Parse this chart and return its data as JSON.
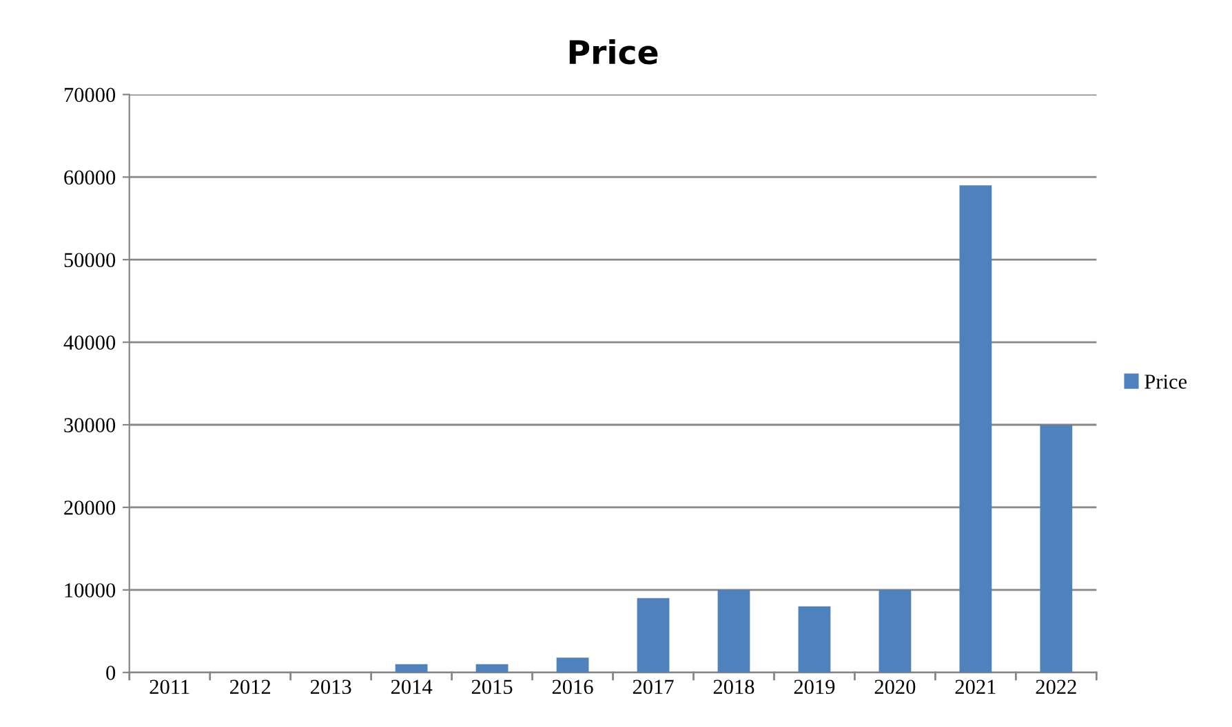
{
  "chart_data": {
    "type": "bar",
    "title": "Price",
    "categories": [
      "2011",
      "2012",
      "2013",
      "2014",
      "2015",
      "2016",
      "2017",
      "2018",
      "2019",
      "2020",
      "2021",
      "2022"
    ],
    "series": [
      {
        "name": "Price",
        "color": "#4f81bd",
        "values": [
          0,
          0,
          0,
          1000,
          1000,
          1800,
          9000,
          10000,
          8000,
          10000,
          59000,
          30000
        ]
      }
    ],
    "ylim": [
      0,
      70000
    ],
    "yticks": [
      0,
      10000,
      20000,
      30000,
      40000,
      50000,
      60000,
      70000
    ],
    "grid": "y",
    "legend": "right"
  }
}
